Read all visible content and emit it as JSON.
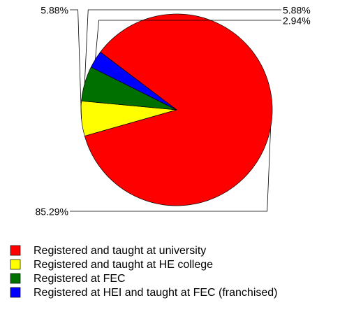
{
  "chart_data": {
    "type": "pie",
    "categories": [
      "Registered and taught at university",
      "Registered and taught at HE college",
      "Registered at FEC",
      "Registered at HEI and taught at FEC (franchised)"
    ],
    "values": [
      85.29,
      5.88,
      5.88,
      2.94
    ],
    "value_labels": [
      "85.29%",
      "5.88%",
      "5.88%",
      "2.94%"
    ],
    "colors": [
      "#ff0000",
      "#ffff00",
      "#007000",
      "#0000ff"
    ],
    "legend": "bottom"
  }
}
